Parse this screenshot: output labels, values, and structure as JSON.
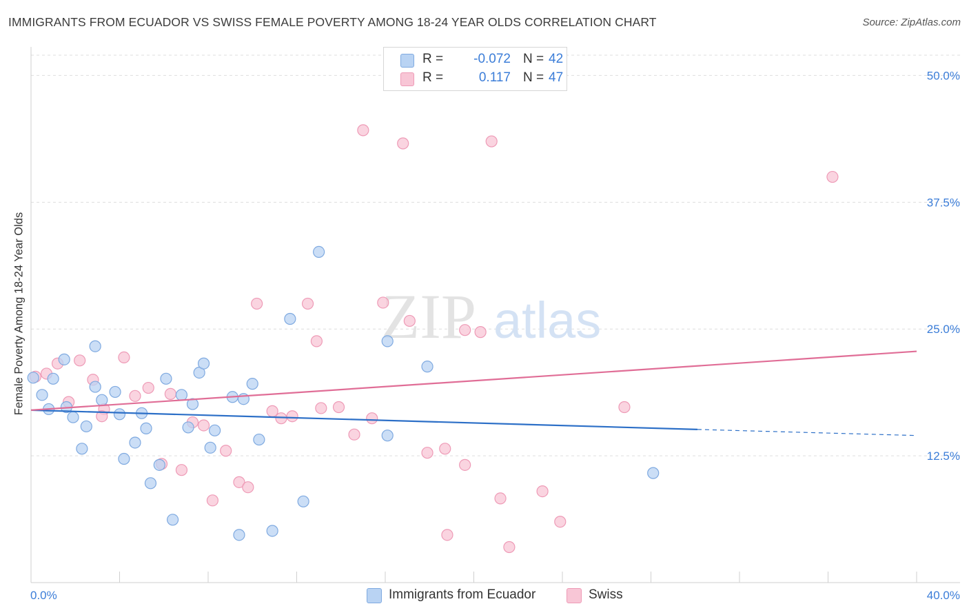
{
  "title": "IMMIGRANTS FROM ECUADOR VS SWISS FEMALE POVERTY AMONG 18-24 YEAR OLDS CORRELATION CHART",
  "source": "Source: ZipAtlas.com",
  "watermark": {
    "zip": "ZIP",
    "atlas": "atlas"
  },
  "legend": {
    "rows": [
      {
        "r_label": "R =",
        "r_value": "-0.072",
        "n_label": "N =",
        "n_value": "42"
      },
      {
        "r_label": "R =",
        "r_value": "0.117",
        "n_label": "N =",
        "n_value": "47"
      }
    ]
  },
  "bottom_legend": {
    "series1_label": "Immigrants from Ecuador",
    "series2_label": "Swiss"
  },
  "colors": {
    "blue_fill": "#b9d3f3",
    "blue_stroke": "#7ea9e0",
    "blue_line": "#2c6fc7",
    "pink_fill": "#f8c6d6",
    "pink_stroke": "#ee9ab6",
    "pink_line": "#e06d96",
    "axis_text": "#3b7dd8",
    "grid": "#dddddd"
  },
  "chart_data": {
    "type": "scatter",
    "title": "IMMIGRANTS FROM ECUADOR VS SWISS FEMALE POVERTY AMONG 18-24 YEAR OLDS CORRELATION CHART",
    "xlabel": "",
    "ylabel": "Female Poverty Among 18-24 Year Olds",
    "xlim": [
      0,
      40
    ],
    "ylim": [
      0,
      52
    ],
    "x_tick_labels": [
      {
        "value": 0,
        "label": "0.0%"
      },
      {
        "value": 40,
        "label": "40.0%"
      }
    ],
    "y_ticks": [
      {
        "value": 12.5,
        "label": "12.5%"
      },
      {
        "value": 25,
        "label": "25.0%"
      },
      {
        "value": 37.5,
        "label": "37.5%"
      },
      {
        "value": 50,
        "label": "50.0%"
      }
    ],
    "x_minor_ticks": [
      0,
      4,
      8,
      12,
      16,
      20,
      24,
      28,
      32,
      36,
      40
    ],
    "series": [
      {
        "name": "Immigrants from Ecuador",
        "color": "blue",
        "points": [
          [
            0.1,
            20.2
          ],
          [
            0.5,
            18.5
          ],
          [
            0.8,
            17.1
          ],
          [
            1.0,
            20.1
          ],
          [
            1.5,
            22.0
          ],
          [
            1.6,
            17.3
          ],
          [
            1.9,
            16.3
          ],
          [
            2.3,
            13.2
          ],
          [
            2.5,
            15.4
          ],
          [
            2.9,
            23.3
          ],
          [
            2.9,
            19.3
          ],
          [
            3.2,
            18.0
          ],
          [
            3.8,
            18.8
          ],
          [
            4.0,
            16.6
          ],
          [
            4.2,
            12.2
          ],
          [
            4.7,
            13.8
          ],
          [
            5.0,
            16.7
          ],
          [
            5.2,
            15.2
          ],
          [
            5.4,
            9.8
          ],
          [
            5.8,
            11.6
          ],
          [
            6.1,
            20.1
          ],
          [
            6.4,
            6.2
          ],
          [
            6.8,
            18.5
          ],
          [
            7.1,
            15.3
          ],
          [
            7.3,
            17.6
          ],
          [
            7.6,
            20.7
          ],
          [
            7.8,
            21.6
          ],
          [
            8.1,
            13.3
          ],
          [
            8.3,
            15.0
          ],
          [
            9.1,
            18.3
          ],
          [
            9.4,
            4.7
          ],
          [
            9.6,
            18.1
          ],
          [
            10.0,
            19.6
          ],
          [
            10.3,
            14.1
          ],
          [
            10.9,
            5.1
          ],
          [
            11.7,
            26.0
          ],
          [
            12.3,
            8.0
          ],
          [
            13.0,
            32.6
          ],
          [
            16.1,
            14.5
          ],
          [
            16.1,
            23.8
          ],
          [
            17.9,
            21.3
          ],
          [
            28.1,
            10.8
          ]
        ],
        "trend": {
          "x0": 0,
          "y0": 17.0,
          "x1": 30.1,
          "y1": 15.1,
          "dash_to_x": 40,
          "dash_to_y": 14.5
        }
      },
      {
        "name": "Swiss",
        "color": "pink",
        "points": [
          [
            0.2,
            20.3
          ],
          [
            0.7,
            20.6
          ],
          [
            1.2,
            21.6
          ],
          [
            1.7,
            17.8
          ],
          [
            2.2,
            21.9
          ],
          [
            2.8,
            20.0
          ],
          [
            3.3,
            17.1
          ],
          [
            3.2,
            16.4
          ],
          [
            4.2,
            22.2
          ],
          [
            4.7,
            18.4
          ],
          [
            5.3,
            19.2
          ],
          [
            5.9,
            11.7
          ],
          [
            6.3,
            18.6
          ],
          [
            6.8,
            11.1
          ],
          [
            7.3,
            15.8
          ],
          [
            7.8,
            15.5
          ],
          [
            8.2,
            8.1
          ],
          [
            8.8,
            13.0
          ],
          [
            9.4,
            9.9
          ],
          [
            9.8,
            9.4
          ],
          [
            10.2,
            27.5
          ],
          [
            10.9,
            16.9
          ],
          [
            11.3,
            16.2
          ],
          [
            11.8,
            16.4
          ],
          [
            12.5,
            27.5
          ],
          [
            12.9,
            23.8
          ],
          [
            13.1,
            17.2
          ],
          [
            13.9,
            17.3
          ],
          [
            14.6,
            14.6
          ],
          [
            15.0,
            44.6
          ],
          [
            15.4,
            16.2
          ],
          [
            15.9,
            27.6
          ],
          [
            16.8,
            43.3
          ],
          [
            17.1,
            25.8
          ],
          [
            17.9,
            12.8
          ],
          [
            18.7,
            13.2
          ],
          [
            18.8,
            4.7
          ],
          [
            19.6,
            24.9
          ],
          [
            19.6,
            11.6
          ],
          [
            20.3,
            24.7
          ],
          [
            20.8,
            43.5
          ],
          [
            21.2,
            8.3
          ],
          [
            21.6,
            3.5
          ],
          [
            23.1,
            9.0
          ],
          [
            23.9,
            6.0
          ],
          [
            26.8,
            17.3
          ],
          [
            36.2,
            40.0
          ]
        ],
        "trend": {
          "x0": 0,
          "y0": 17.0,
          "x1": 40,
          "y1": 22.8
        }
      }
    ]
  }
}
